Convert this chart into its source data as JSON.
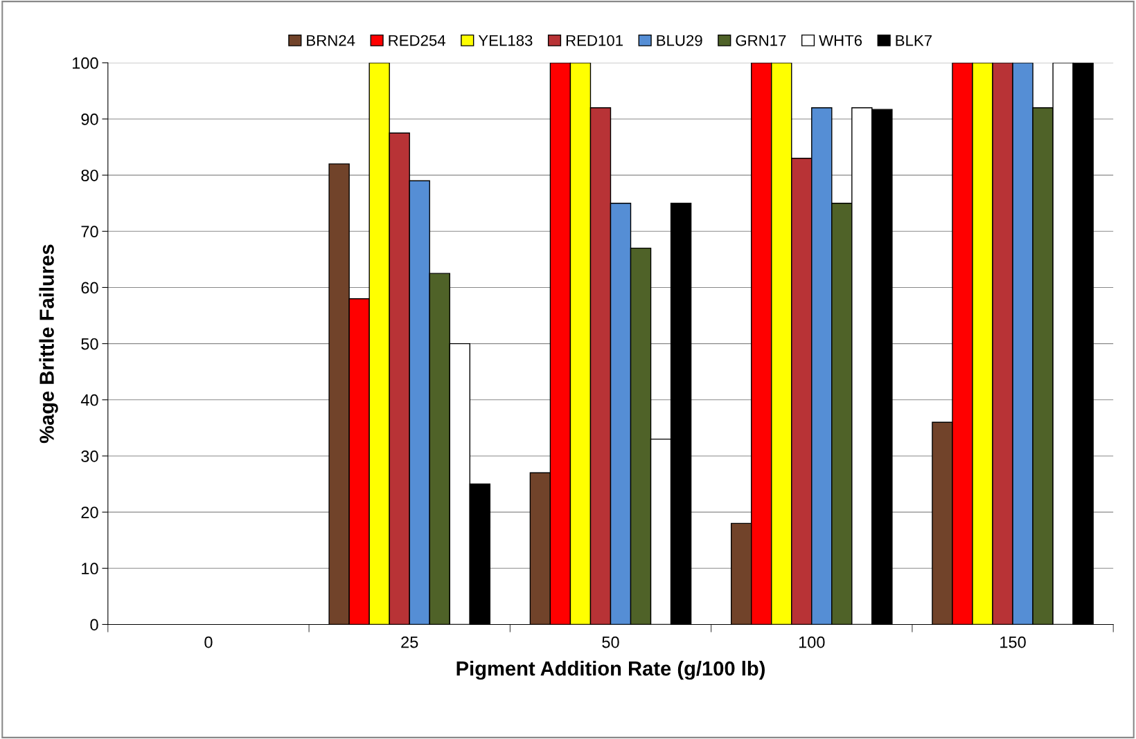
{
  "chart_data": {
    "type": "bar",
    "xlabel": "Pigment Addition Rate (g/100 lb)",
    "ylabel": "%age Brittle Failures",
    "categories": [
      "0",
      "25",
      "50",
      "100",
      "150"
    ],
    "series": [
      {
        "name": "BRN24",
        "color": "#71432a",
        "values": [
          null,
          82,
          27,
          18,
          36
        ]
      },
      {
        "name": "RED254",
        "color": "#ff0000",
        "values": [
          null,
          58,
          100,
          100,
          100
        ]
      },
      {
        "name": "YEL183",
        "color": "#ffff00",
        "values": [
          null,
          100,
          100,
          100,
          100
        ]
      },
      {
        "name": "RED101",
        "color": "#b83336",
        "values": [
          null,
          87.5,
          92,
          83,
          100
        ]
      },
      {
        "name": "BLU29",
        "color": "#558ed5",
        "values": [
          null,
          79,
          75,
          92,
          100
        ]
      },
      {
        "name": "GRN17",
        "color": "#4f6228",
        "values": [
          null,
          62.5,
          67,
          75,
          92
        ]
      },
      {
        "name": "WHT6",
        "color": "#ffffff",
        "values": [
          null,
          50,
          33,
          92,
          100
        ]
      },
      {
        "name": "BLK7",
        "color": "#000000",
        "values": [
          null,
          25,
          75,
          91.7,
          100
        ]
      }
    ],
    "ylim": [
      0,
      100
    ],
    "yticks": [
      0,
      10,
      20,
      30,
      40,
      50,
      60,
      70,
      80,
      90,
      100
    ],
    "grid": "y",
    "legend": "top"
  }
}
